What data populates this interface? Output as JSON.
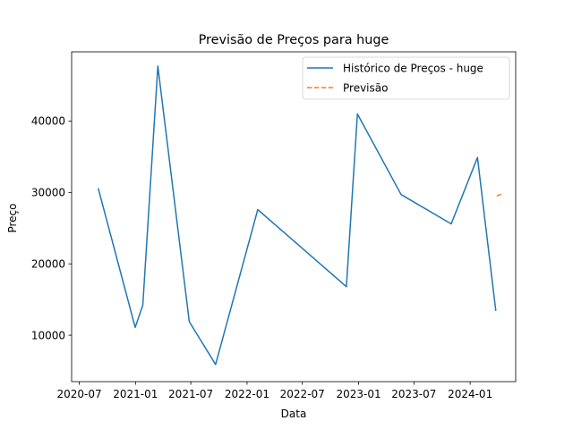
{
  "chart_data": {
    "type": "line",
    "title": "Previsão de Preços para huge",
    "xlabel": "Data",
    "ylabel": "Preço",
    "x_ticks": [
      "2020-07",
      "2021-01",
      "2021-07",
      "2022-01",
      "2022-07",
      "2023-01",
      "2023-07",
      "2024-01"
    ],
    "y_ticks": [
      10000,
      20000,
      30000,
      40000
    ],
    "ylim": [
      3500,
      49700
    ],
    "xlim": [
      "2020-06-06",
      "2024-05-29"
    ],
    "legend_position": "top-right",
    "grid": false,
    "series": [
      {
        "name": "Histórico de Preços - huge",
        "color": "#1f77b4",
        "style": "solid",
        "points": [
          {
            "x": "2020-09-01",
            "y": 30600
          },
          {
            "x": "2020-12-31",
            "y": 11100
          },
          {
            "x": "2021-01-25",
            "y": 14200
          },
          {
            "x": "2021-03-15",
            "y": 47700
          },
          {
            "x": "2021-06-26",
            "y": 11900
          },
          {
            "x": "2021-09-20",
            "y": 5900
          },
          {
            "x": "2022-02-05",
            "y": 27600
          },
          {
            "x": "2022-11-22",
            "y": 16800
          },
          {
            "x": "2022-12-28",
            "y": 41000
          },
          {
            "x": "2023-05-20",
            "y": 29700
          },
          {
            "x": "2023-10-31",
            "y": 25600
          },
          {
            "x": "2024-01-25",
            "y": 34900
          },
          {
            "x": "2024-03-25",
            "y": 13400
          }
        ]
      },
      {
        "name": "Previsão",
        "color": "#ff7f0e",
        "style": "dashed",
        "points": [
          {
            "x": "2024-03-28",
            "y": 29500
          },
          {
            "x": "2024-04-15",
            "y": 29800
          }
        ]
      }
    ]
  }
}
